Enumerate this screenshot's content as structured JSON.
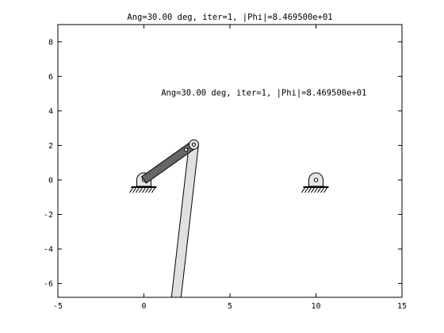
{
  "figure": {
    "title": "Ang=30.00 deg, iter=1, |Phi|=8.469500e+01",
    "annotation": "Ang=30.00 deg, iter=1, |Phi|=8.469500e+01"
  },
  "chart_data": {
    "type": "mechanism-plot",
    "title": "Ang=30.00 deg, iter=1, |Phi|=8.469500e+01",
    "xlabel": "",
    "ylabel": "",
    "xlim": [
      -5,
      15
    ],
    "ylim": [
      -6.8,
      9
    ],
    "xticks": [
      -5,
      0,
      5,
      10,
      15
    ],
    "yticks": [
      -6,
      -4,
      -2,
      0,
      2,
      4,
      6,
      8
    ],
    "grid": false,
    "annotation": {
      "text": "Ang=30.00 deg, iter=1, |Phi|=8.469500e+01",
      "x": 1.0,
      "y": 4.9
    },
    "ground_supports": [
      {
        "name": "O2",
        "x": 0,
        "y": 0
      },
      {
        "name": "O4",
        "x": 10,
        "y": 0
      }
    ],
    "links": [
      {
        "name": "crank",
        "from": [
          0,
          0
        ],
        "to": [
          2.9,
          2.05
        ],
        "color": "#666666"
      },
      {
        "name": "coupler",
        "from": [
          2.9,
          2.05
        ],
        "to": [
          1.8,
          -7.5
        ],
        "color": "#e0e0e0"
      }
    ],
    "joints": [
      {
        "name": "pin-A",
        "x": 2.9,
        "y": 2.05
      },
      {
        "name": "pin-crank-end",
        "x": 2.45,
        "y": 1.75
      }
    ]
  }
}
